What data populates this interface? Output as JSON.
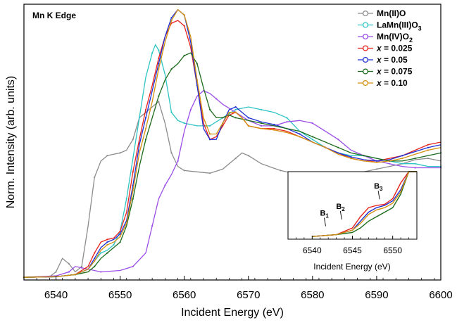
{
  "chart_data": {
    "type": "line",
    "annotation": "Mn K Edge",
    "xlabel": "Incident Energy (eV)",
    "ylabel": "Norm. Intensity (arb. units)",
    "xlim": [
      6535,
      6600
    ],
    "ylim": [
      0,
      1.02
    ],
    "xticks": [
      "6540",
      "6550",
      "6560",
      "6570",
      "6580",
      "6590",
      "6600"
    ],
    "yticks_labeled": false,
    "grid": false,
    "legend_position": "top-right",
    "series": [
      {
        "name": "Mn(II)O",
        "label_main": "Mn(II)O",
        "label_sub": "",
        "color": "#8c8c8c",
        "points": [
          [
            6535,
            0.01
          ],
          [
            6539,
            0.012
          ],
          [
            6540,
            0.03
          ],
          [
            6541,
            0.08
          ],
          [
            6542,
            0.06
          ],
          [
            6543,
            0.03
          ],
          [
            6544,
            0.05
          ],
          [
            6545,
            0.2
          ],
          [
            6546,
            0.38
          ],
          [
            6547,
            0.44
          ],
          [
            6548,
            0.46
          ],
          [
            6549,
            0.465
          ],
          [
            6550,
            0.47
          ],
          [
            6551,
            0.48
          ],
          [
            6552,
            0.52
          ],
          [
            6553,
            0.6
          ],
          [
            6554,
            0.62
          ],
          [
            6555,
            0.64
          ],
          [
            6556,
            0.66
          ],
          [
            6557,
            0.58
          ],
          [
            6558,
            0.47
          ],
          [
            6559,
            0.42
          ],
          [
            6560,
            0.405
          ],
          [
            6562,
            0.4
          ],
          [
            6564,
            0.395
          ],
          [
            6566,
            0.41
          ],
          [
            6568,
            0.45
          ],
          [
            6569,
            0.47
          ],
          [
            6570,
            0.46
          ],
          [
            6572,
            0.43
          ],
          [
            6575,
            0.405
          ],
          [
            6578,
            0.39
          ],
          [
            6580,
            0.39
          ],
          [
            6583,
            0.395
          ],
          [
            6586,
            0.39
          ],
          [
            6588,
            0.4
          ],
          [
            6590,
            0.41
          ],
          [
            6592,
            0.42
          ],
          [
            6594,
            0.43
          ],
          [
            6596,
            0.445
          ],
          [
            6598,
            0.45
          ],
          [
            6600,
            0.44
          ]
        ]
      },
      {
        "name": "LaMn(III)O3",
        "label_main": "LaMn(III)O",
        "label_sub": "3",
        "color": "#2ec4c4",
        "points": [
          [
            6535,
            0.01
          ],
          [
            6540,
            0.012
          ],
          [
            6543,
            0.02
          ],
          [
            6545,
            0.04
          ],
          [
            6547,
            0.1
          ],
          [
            6548,
            0.11
          ],
          [
            6549,
            0.13
          ],
          [
            6550,
            0.18
          ],
          [
            6551,
            0.3
          ],
          [
            6552,
            0.45
          ],
          [
            6553,
            0.6
          ],
          [
            6554,
            0.75
          ],
          [
            6555,
            0.84
          ],
          [
            6555.5,
            0.87
          ],
          [
            6556,
            0.85
          ],
          [
            6557,
            0.76
          ],
          [
            6558,
            0.62
          ],
          [
            6559,
            0.59
          ],
          [
            6560,
            0.58
          ],
          [
            6562,
            0.57
          ],
          [
            6564,
            0.57
          ],
          [
            6566,
            0.6
          ],
          [
            6568,
            0.63
          ],
          [
            6570,
            0.64
          ],
          [
            6572,
            0.63
          ],
          [
            6574,
            0.62
          ],
          [
            6576,
            0.6
          ],
          [
            6578,
            0.55
          ],
          [
            6580,
            0.52
          ],
          [
            6582,
            0.49
          ],
          [
            6584,
            0.47
          ],
          [
            6586,
            0.46
          ],
          [
            6588,
            0.46
          ],
          [
            6590,
            0.45
          ],
          [
            6592,
            0.44
          ],
          [
            6594,
            0.43
          ],
          [
            6596,
            0.43
          ],
          [
            6598,
            0.42
          ],
          [
            6600,
            0.42
          ]
        ]
      },
      {
        "name": "Mn(IV)O2",
        "label_main": "Mn(IV)O",
        "label_sub": "2",
        "color": "#9b4de8",
        "points": [
          [
            6535,
            0.01
          ],
          [
            6540,
            0.015
          ],
          [
            6542,
            0.03
          ],
          [
            6543,
            0.05
          ],
          [
            6544,
            0.045
          ],
          [
            6545,
            0.04
          ],
          [
            6547,
            0.03
          ],
          [
            6550,
            0.035
          ],
          [
            6552,
            0.05
          ],
          [
            6554,
            0.1
          ],
          [
            6555,
            0.2
          ],
          [
            6556,
            0.3
          ],
          [
            6557,
            0.35
          ],
          [
            6558,
            0.39
          ],
          [
            6559,
            0.44
          ],
          [
            6560,
            0.55
          ],
          [
            6561,
            0.63
          ],
          [
            6562,
            0.68
          ],
          [
            6563,
            0.7
          ],
          [
            6564,
            0.69
          ],
          [
            6565,
            0.67
          ],
          [
            6566,
            0.65
          ],
          [
            6568,
            0.62
          ],
          [
            6570,
            0.59
          ],
          [
            6572,
            0.57
          ],
          [
            6574,
            0.57
          ],
          [
            6576,
            0.585
          ],
          [
            6578,
            0.59
          ],
          [
            6580,
            0.58
          ],
          [
            6582,
            0.55
          ],
          [
            6584,
            0.52
          ],
          [
            6586,
            0.48
          ],
          [
            6588,
            0.46
          ],
          [
            6590,
            0.44
          ],
          [
            6592,
            0.43
          ],
          [
            6594,
            0.42
          ],
          [
            6596,
            0.415
          ],
          [
            6598,
            0.415
          ],
          [
            6600,
            0.415
          ]
        ]
      },
      {
        "name": "x = 0.025",
        "label_main": "x = 0.025",
        "label_sub": "",
        "color": "#e8211b",
        "points": [
          [
            6535,
            0.01
          ],
          [
            6540,
            0.012
          ],
          [
            6543,
            0.02
          ],
          [
            6545,
            0.05
          ],
          [
            6546,
            0.1
          ],
          [
            6547,
            0.14
          ],
          [
            6548,
            0.15
          ],
          [
            6549,
            0.155
          ],
          [
            6550,
            0.18
          ],
          [
            6551,
            0.25
          ],
          [
            6552,
            0.4
          ],
          [
            6553,
            0.52
          ],
          [
            6554,
            0.63
          ],
          [
            6555,
            0.72
          ],
          [
            6556,
            0.82
          ],
          [
            6557,
            0.9
          ],
          [
            6558,
            0.95
          ],
          [
            6559,
            0.96
          ],
          [
            6560,
            0.94
          ],
          [
            6561,
            0.86
          ],
          [
            6562,
            0.72
          ],
          [
            6563,
            0.58
          ],
          [
            6564,
            0.52
          ],
          [
            6565,
            0.53
          ],
          [
            6566,
            0.57
          ],
          [
            6567,
            0.61
          ],
          [
            6568,
            0.62
          ],
          [
            6569,
            0.6
          ],
          [
            6570,
            0.57
          ],
          [
            6572,
            0.56
          ],
          [
            6574,
            0.56
          ],
          [
            6576,
            0.55
          ],
          [
            6578,
            0.53
          ],
          [
            6580,
            0.51
          ],
          [
            6582,
            0.49
          ],
          [
            6584,
            0.47
          ],
          [
            6586,
            0.45
          ],
          [
            6588,
            0.44
          ],
          [
            6590,
            0.44
          ],
          [
            6592,
            0.45
          ],
          [
            6594,
            0.46
          ],
          [
            6596,
            0.48
          ],
          [
            6598,
            0.5
          ],
          [
            6600,
            0.51
          ]
        ]
      },
      {
        "name": "x = 0.05",
        "label_main": "x = 0.05",
        "label_sub": "",
        "color": "#1e2fd6",
        "points": [
          [
            6535,
            0.01
          ],
          [
            6540,
            0.012
          ],
          [
            6543,
            0.02
          ],
          [
            6545,
            0.04
          ],
          [
            6546,
            0.08
          ],
          [
            6547,
            0.12
          ],
          [
            6548,
            0.14
          ],
          [
            6549,
            0.15
          ],
          [
            6550,
            0.17
          ],
          [
            6551,
            0.22
          ],
          [
            6552,
            0.35
          ],
          [
            6553,
            0.5
          ],
          [
            6554,
            0.6
          ],
          [
            6555,
            0.7
          ],
          [
            6556,
            0.8
          ],
          [
            6557,
            0.9
          ],
          [
            6558,
            0.97
          ],
          [
            6559,
            1.0
          ],
          [
            6560,
            0.98
          ],
          [
            6561,
            0.88
          ],
          [
            6562,
            0.72
          ],
          [
            6563,
            0.56
          ],
          [
            6564,
            0.52
          ],
          [
            6565,
            0.52
          ],
          [
            6566,
            0.58
          ],
          [
            6567,
            0.63
          ],
          [
            6568,
            0.64
          ],
          [
            6569,
            0.62
          ],
          [
            6570,
            0.6
          ],
          [
            6572,
            0.585
          ],
          [
            6574,
            0.575
          ],
          [
            6576,
            0.56
          ],
          [
            6578,
            0.54
          ],
          [
            6580,
            0.51
          ],
          [
            6582,
            0.49
          ],
          [
            6584,
            0.47
          ],
          [
            6586,
            0.455
          ],
          [
            6588,
            0.445
          ],
          [
            6590,
            0.44
          ],
          [
            6592,
            0.445
          ],
          [
            6594,
            0.46
          ],
          [
            6596,
            0.475
          ],
          [
            6598,
            0.49
          ],
          [
            6600,
            0.5
          ]
        ]
      },
      {
        "name": "x = 0.075",
        "label_main": "x = 0.075",
        "label_sub": "",
        "color": "#1c6b1c",
        "points": [
          [
            6535,
            0.01
          ],
          [
            6540,
            0.012
          ],
          [
            6543,
            0.02
          ],
          [
            6545,
            0.03
          ],
          [
            6546,
            0.05
          ],
          [
            6547,
            0.08
          ],
          [
            6548,
            0.1
          ],
          [
            6549,
            0.12
          ],
          [
            6550,
            0.14
          ],
          [
            6551,
            0.2
          ],
          [
            6552,
            0.3
          ],
          [
            6553,
            0.42
          ],
          [
            6554,
            0.52
          ],
          [
            6555,
            0.6
          ],
          [
            6556,
            0.68
          ],
          [
            6557,
            0.74
          ],
          [
            6558,
            0.78
          ],
          [
            6559,
            0.8
          ],
          [
            6560,
            0.83
          ],
          [
            6561,
            0.84
          ],
          [
            6562,
            0.8
          ],
          [
            6563,
            0.71
          ],
          [
            6564,
            0.63
          ],
          [
            6565,
            0.6
          ],
          [
            6566,
            0.6
          ],
          [
            6567,
            0.61
          ],
          [
            6568,
            0.6
          ],
          [
            6570,
            0.59
          ],
          [
            6572,
            0.58
          ],
          [
            6574,
            0.57
          ],
          [
            6576,
            0.56
          ],
          [
            6578,
            0.55
          ],
          [
            6580,
            0.53
          ],
          [
            6582,
            0.51
          ],
          [
            6584,
            0.49
          ],
          [
            6586,
            0.47
          ],
          [
            6588,
            0.46
          ],
          [
            6590,
            0.45
          ],
          [
            6592,
            0.44
          ],
          [
            6594,
            0.44
          ],
          [
            6596,
            0.45
          ],
          [
            6598,
            0.46
          ],
          [
            6600,
            0.47
          ]
        ]
      },
      {
        "name": "x = 0.10",
        "label_main": "x = 0.10",
        "label_sub": "",
        "color": "#d4900f",
        "points": [
          [
            6535,
            0.01
          ],
          [
            6540,
            0.012
          ],
          [
            6543,
            0.02
          ],
          [
            6545,
            0.04
          ],
          [
            6546,
            0.07
          ],
          [
            6547,
            0.11
          ],
          [
            6548,
            0.13
          ],
          [
            6549,
            0.14
          ],
          [
            6550,
            0.16
          ],
          [
            6551,
            0.21
          ],
          [
            6552,
            0.33
          ],
          [
            6553,
            0.47
          ],
          [
            6554,
            0.56
          ],
          [
            6555,
            0.66
          ],
          [
            6556,
            0.78
          ],
          [
            6557,
            0.88
          ],
          [
            6558,
            0.96
          ],
          [
            6559,
            1.0
          ],
          [
            6560,
            0.98
          ],
          [
            6561,
            0.9
          ],
          [
            6562,
            0.74
          ],
          [
            6563,
            0.6
          ],
          [
            6564,
            0.54
          ],
          [
            6565,
            0.54
          ],
          [
            6566,
            0.58
          ],
          [
            6567,
            0.62
          ],
          [
            6568,
            0.62
          ],
          [
            6569,
            0.6
          ],
          [
            6570,
            0.57
          ],
          [
            6572,
            0.56
          ],
          [
            6574,
            0.555
          ],
          [
            6576,
            0.545
          ],
          [
            6578,
            0.53
          ],
          [
            6580,
            0.51
          ],
          [
            6582,
            0.49
          ],
          [
            6584,
            0.465
          ],
          [
            6586,
            0.45
          ],
          [
            6588,
            0.44
          ],
          [
            6590,
            0.435
          ],
          [
            6592,
            0.44
          ],
          [
            6594,
            0.45
          ],
          [
            6596,
            0.465
          ],
          [
            6598,
            0.48
          ],
          [
            6600,
            0.49
          ]
        ]
      }
    ],
    "inset": {
      "xlabel": "Incident Energy (eV)",
      "xlim": [
        6537,
        6553
      ],
      "ylim": [
        0,
        0.3
      ],
      "xticks": [
        "6540",
        "6545",
        "6550"
      ],
      "annotations": [
        {
          "main": "B",
          "sub": "1",
          "x": 6541.5,
          "y": 0.07
        },
        {
          "main": "B",
          "sub": "2",
          "x": 6543.5,
          "y": 0.1
        },
        {
          "main": "B",
          "sub": "3",
          "x": 6548.2,
          "y": 0.19
        }
      ]
    }
  }
}
